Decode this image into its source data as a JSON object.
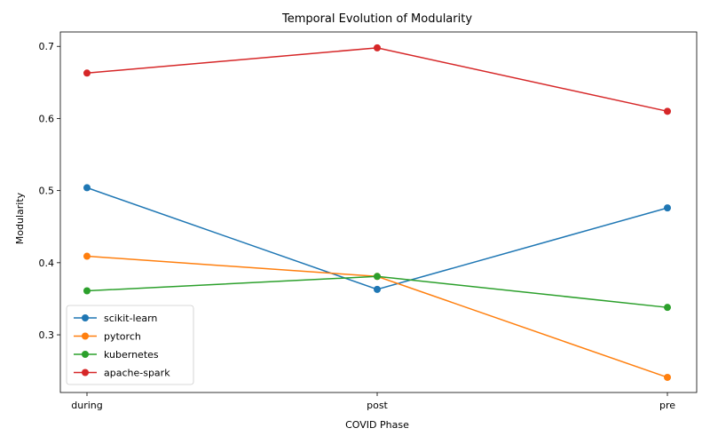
{
  "chart_data": {
    "type": "line",
    "title": "Temporal Evolution of Modularity",
    "xlabel": "COVID Phase",
    "ylabel": "Modularity",
    "categories": [
      "during",
      "post",
      "pre"
    ],
    "ylim": [
      0.22,
      0.72
    ],
    "yticks": [
      0.3,
      0.4,
      0.5,
      0.6,
      0.7
    ],
    "ytick_labels": [
      "0.3",
      "0.4",
      "0.5",
      "0.6",
      "0.7"
    ],
    "grid": false,
    "legend_position": "lower-left",
    "marker": "circle",
    "series": [
      {
        "name": "scikit-learn",
        "color": "#1f77b4",
        "values": [
          0.504,
          0.363,
          0.476
        ]
      },
      {
        "name": "pytorch",
        "color": "#ff7f0e",
        "values": [
          0.409,
          0.381,
          0.241
        ]
      },
      {
        "name": "kubernetes",
        "color": "#2ca02c",
        "values": [
          0.361,
          0.381,
          0.338
        ]
      },
      {
        "name": "apache-spark",
        "color": "#d62728",
        "values": [
          0.663,
          0.698,
          0.61
        ]
      }
    ]
  }
}
